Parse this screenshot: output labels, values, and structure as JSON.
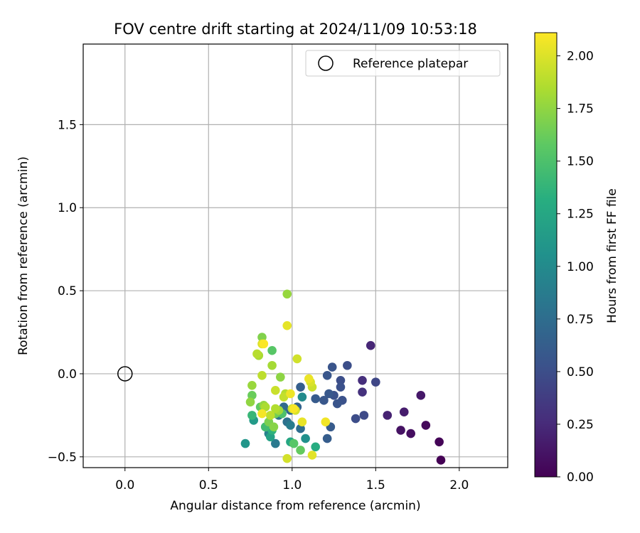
{
  "chart_data": {
    "type": "scatter",
    "title": "FOV centre drift starting at 2024/11/09 10:53:18",
    "xlabel": "Angular distance from reference (arcmin)",
    "ylabel": "Rotation from reference (arcmin)",
    "xlim": [
      -0.25,
      2.29
    ],
    "ylim": [
      -0.565,
      1.985
    ],
    "xticks": [
      "0.0",
      "0.5",
      "1.0",
      "1.5",
      "2.0"
    ],
    "yticks": [
      "−0.5",
      "0.0",
      "0.5",
      "1.0",
      "1.5"
    ],
    "grid": true,
    "legend": {
      "placement": "top-right",
      "label": "Reference platepar"
    },
    "reference_point": {
      "x": 0.0,
      "y": 0.0
    },
    "colorbar": {
      "label": "Hours from first FF file",
      "colormap": "viridis",
      "range": [
        0.0,
        2.11
      ],
      "ticks": [
        "0.00",
        "0.25",
        "0.50",
        "0.75",
        "1.00",
        "1.25",
        "1.50",
        "1.75",
        "2.00"
      ]
    },
    "points": [
      {
        "x": 1.89,
        "y": -0.52,
        "c": 0.0
      },
      {
        "x": 1.88,
        "y": -0.41,
        "c": 0.02
      },
      {
        "x": 1.8,
        "y": -0.31,
        "c": 0.05
      },
      {
        "x": 1.71,
        "y": -0.36,
        "c": 0.08
      },
      {
        "x": 1.65,
        "y": -0.34,
        "c": 0.1
      },
      {
        "x": 1.77,
        "y": -0.13,
        "c": 0.14
      },
      {
        "x": 1.67,
        "y": -0.23,
        "c": 0.17
      },
      {
        "x": 1.57,
        "y": -0.25,
        "c": 0.2
      },
      {
        "x": 1.47,
        "y": 0.17,
        "c": 0.23
      },
      {
        "x": 1.42,
        "y": -0.04,
        "c": 0.28
      },
      {
        "x": 1.42,
        "y": -0.11,
        "c": 0.3
      },
      {
        "x": 1.5,
        "y": -0.05,
        "c": 0.45
      },
      {
        "x": 1.43,
        "y": -0.25,
        "c": 0.47
      },
      {
        "x": 1.38,
        "y": -0.27,
        "c": 0.49
      },
      {
        "x": 1.33,
        "y": 0.05,
        "c": 0.5
      },
      {
        "x": 1.29,
        "y": -0.04,
        "c": 0.5
      },
      {
        "x": 1.29,
        "y": -0.08,
        "c": 0.52
      },
      {
        "x": 1.3,
        "y": -0.16,
        "c": 0.53
      },
      {
        "x": 1.27,
        "y": -0.18,
        "c": 0.55
      },
      {
        "x": 1.25,
        "y": -0.13,
        "c": 0.53
      },
      {
        "x": 1.24,
        "y": 0.04,
        "c": 0.55
      },
      {
        "x": 1.21,
        "y": -0.01,
        "c": 0.56
      },
      {
        "x": 1.22,
        "y": -0.12,
        "c": 0.58
      },
      {
        "x": 1.19,
        "y": -0.16,
        "c": 0.57
      },
      {
        "x": 1.23,
        "y": -0.32,
        "c": 0.6
      },
      {
        "x": 1.14,
        "y": -0.15,
        "c": 0.6
      },
      {
        "x": 1.21,
        "y": -0.39,
        "c": 0.62
      },
      {
        "x": 1.05,
        "y": -0.08,
        "c": 0.63
      },
      {
        "x": 1.03,
        "y": -0.2,
        "c": 0.67
      },
      {
        "x": 0.99,
        "y": -0.22,
        "c": 0.7
      },
      {
        "x": 0.95,
        "y": -0.2,
        "c": 0.72
      },
      {
        "x": 1.05,
        "y": -0.33,
        "c": 0.75
      },
      {
        "x": 0.97,
        "y": -0.29,
        "c": 0.78
      },
      {
        "x": 0.92,
        "y": -0.25,
        "c": 0.82
      },
      {
        "x": 0.9,
        "y": -0.42,
        "c": 0.85
      },
      {
        "x": 0.99,
        "y": -0.31,
        "c": 0.88
      },
      {
        "x": 0.86,
        "y": -0.36,
        "c": 0.92
      },
      {
        "x": 1.06,
        "y": -0.14,
        "c": 1.0
      },
      {
        "x": 1.08,
        "y": -0.39,
        "c": 1.05
      },
      {
        "x": 0.72,
        "y": -0.42,
        "c": 1.1
      },
      {
        "x": 0.77,
        "y": -0.28,
        "c": 1.14
      },
      {
        "x": 0.87,
        "y": -0.38,
        "c": 1.2
      },
      {
        "x": 0.99,
        "y": -0.41,
        "c": 1.25
      },
      {
        "x": 1.14,
        "y": -0.44,
        "c": 1.3
      },
      {
        "x": 0.88,
        "y": -0.34,
        "c": 1.35
      },
      {
        "x": 0.76,
        "y": -0.25,
        "c": 1.4
      },
      {
        "x": 0.84,
        "y": -0.32,
        "c": 1.45
      },
      {
        "x": 0.94,
        "y": -0.24,
        "c": 1.5
      },
      {
        "x": 1.01,
        "y": -0.42,
        "c": 1.55
      },
      {
        "x": 0.88,
        "y": 0.14,
        "c": 1.55
      },
      {
        "x": 0.81,
        "y": -0.2,
        "c": 1.58
      },
      {
        "x": 1.05,
        "y": -0.46,
        "c": 1.6
      },
      {
        "x": 0.76,
        "y": -0.13,
        "c": 1.62
      },
      {
        "x": 0.9,
        "y": -0.24,
        "c": 1.65
      },
      {
        "x": 0.86,
        "y": -0.29,
        "c": 1.68
      },
      {
        "x": 0.82,
        "y": 0.22,
        "c": 1.7
      },
      {
        "x": 0.89,
        "y": -0.32,
        "c": 1.72
      },
      {
        "x": 0.93,
        "y": -0.02,
        "c": 1.74
      },
      {
        "x": 0.75,
        "y": -0.17,
        "c": 1.75
      },
      {
        "x": 0.83,
        "y": -0.19,
        "c": 1.76
      },
      {
        "x": 0.97,
        "y": 0.48,
        "c": 1.77
      },
      {
        "x": 0.76,
        "y": -0.07,
        "c": 1.78
      },
      {
        "x": 0.92,
        "y": -0.22,
        "c": 1.8
      },
      {
        "x": 0.88,
        "y": 0.05,
        "c": 1.82
      },
      {
        "x": 0.8,
        "y": 0.11,
        "c": 1.83
      },
      {
        "x": 0.84,
        "y": -0.2,
        "c": 1.84
      },
      {
        "x": 0.9,
        "y": -0.21,
        "c": 1.86
      },
      {
        "x": 0.96,
        "y": -0.12,
        "c": 1.87
      },
      {
        "x": 0.79,
        "y": 0.12,
        "c": 1.88
      },
      {
        "x": 0.82,
        "y": -0.01,
        "c": 1.9
      },
      {
        "x": 0.87,
        "y": -0.25,
        "c": 1.9
      },
      {
        "x": 0.95,
        "y": -0.14,
        "c": 1.92
      },
      {
        "x": 1.0,
        "y": -0.21,
        "c": 1.93
      },
      {
        "x": 0.9,
        "y": -0.1,
        "c": 1.94
      },
      {
        "x": 1.12,
        "y": -0.08,
        "c": 1.95
      },
      {
        "x": 1.03,
        "y": 0.09,
        "c": 1.96
      },
      {
        "x": 0.97,
        "y": -0.51,
        "c": 1.97
      },
      {
        "x": 1.02,
        "y": -0.22,
        "c": 1.98
      },
      {
        "x": 1.11,
        "y": -0.05,
        "c": 1.99
      },
      {
        "x": 0.82,
        "y": 0.18,
        "c": 2.0
      },
      {
        "x": 1.12,
        "y": -0.49,
        "c": 2.02
      },
      {
        "x": 0.97,
        "y": 0.29,
        "c": 2.03
      },
      {
        "x": 1.06,
        "y": -0.29,
        "c": 2.04
      },
      {
        "x": 1.1,
        "y": -0.03,
        "c": 2.05
      },
      {
        "x": 0.99,
        "y": -0.12,
        "c": 2.06
      },
      {
        "x": 1.2,
        "y": -0.29,
        "c": 2.07
      },
      {
        "x": 0.82,
        "y": -0.24,
        "c": 2.08
      },
      {
        "x": 1.01,
        "y": -0.21,
        "c": 2.09
      },
      {
        "x": 0.83,
        "y": 0.18,
        "c": 2.1
      }
    ]
  }
}
